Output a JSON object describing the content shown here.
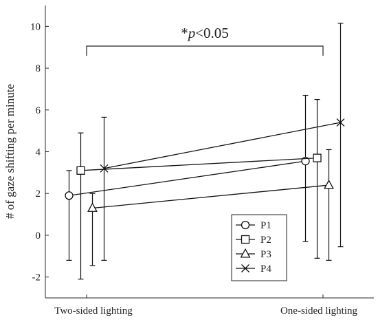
{
  "chart_data": {
    "type": "line",
    "title": "",
    "xlabel": "",
    "ylabel": "# of gaze shifting per minute",
    "categories": [
      "Two-sided lighting",
      "One-sided lighting"
    ],
    "ylim": [
      -3,
      11
    ],
    "yticks": [
      -2,
      0,
      2,
      4,
      6,
      8,
      10
    ],
    "grid": false,
    "legend_position": "bottom-right",
    "annotation": {
      "prefix": "*",
      "italic": "p",
      "suffix": "<0.05",
      "from": "Two-sided lighting",
      "to": "One-sided lighting"
    },
    "series": [
      {
        "name": "P1",
        "marker": "circle",
        "x_offset": -0.075,
        "values": [
          1.9,
          3.55
        ],
        "err_low": [
          -1.2,
          -0.3
        ],
        "err_high": [
          3.1,
          6.7
        ]
      },
      {
        "name": "P2",
        "marker": "square",
        "x_offset": -0.025,
        "values": [
          3.1,
          3.7
        ],
        "err_low": [
          -2.1,
          -1.1
        ],
        "err_high": [
          4.9,
          6.5
        ]
      },
      {
        "name": "P3",
        "marker": "triangle",
        "x_offset": 0.025,
        "values": [
          1.3,
          2.4
        ],
        "err_low": [
          -1.45,
          -1.2
        ],
        "err_high": [
          2.0,
          4.1
        ]
      },
      {
        "name": "P4",
        "marker": "x",
        "x_offset": 0.075,
        "values": [
          3.2,
          5.4
        ],
        "err_low": [
          -1.2,
          -0.55
        ],
        "err_high": [
          5.65,
          10.15
        ]
      }
    ]
  }
}
